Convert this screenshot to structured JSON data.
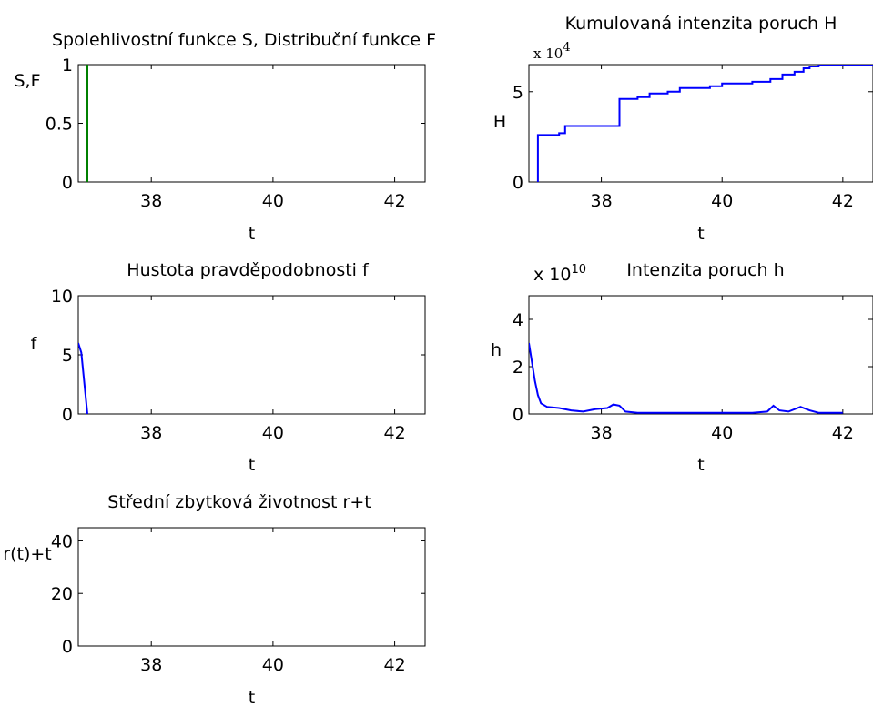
{
  "chart_data": [
    {
      "id": "sf",
      "type": "line",
      "title": "Spolehlivostní funkce S, Distribuční funkce F",
      "xlabel": "t",
      "ylabel": "S,F",
      "xlim": [
        36.8,
        42.5
      ],
      "ylim": [
        0,
        1
      ],
      "xticks": [
        38,
        40,
        42
      ],
      "yticks": [
        0,
        0.5,
        1
      ],
      "ytick_labels": [
        "0",
        "0.5",
        "1"
      ],
      "series": [
        {
          "color": "#008000",
          "points": [
            [
              36.95,
              0
            ],
            [
              36.95,
              1
            ]
          ]
        }
      ]
    },
    {
      "id": "H",
      "type": "line",
      "title": "Kumulovaná intenzita poruch H",
      "xlabel": "t",
      "ylabel": "H",
      "multiplier_base": "x 10",
      "multiplier_exp": "4",
      "xlim": [
        36.8,
        42.5
      ],
      "ylim": [
        0,
        6.5
      ],
      "xticks": [
        38,
        40,
        42
      ],
      "yticks": [
        0,
        5
      ],
      "ytick_labels": [
        "0",
        "5"
      ],
      "series": [
        {
          "color": "#0000ff",
          "step": true,
          "points": [
            [
              36.95,
              0
            ],
            [
              36.95,
              2.6
            ],
            [
              37.3,
              2.6
            ],
            [
              37.3,
              2.7
            ],
            [
              37.4,
              2.7
            ],
            [
              37.4,
              3.1
            ],
            [
              38.3,
              3.1
            ],
            [
              38.3,
              4.6
            ],
            [
              38.6,
              4.6
            ],
            [
              38.6,
              4.7
            ],
            [
              38.8,
              4.7
            ],
            [
              38.8,
              4.9
            ],
            [
              39.1,
              4.9
            ],
            [
              39.1,
              5.0
            ],
            [
              39.3,
              5.0
            ],
            [
              39.3,
              5.2
            ],
            [
              39.8,
              5.2
            ],
            [
              39.8,
              5.3
            ],
            [
              40.0,
              5.3
            ],
            [
              40.0,
              5.45
            ],
            [
              40.5,
              5.45
            ],
            [
              40.5,
              5.55
            ],
            [
              40.8,
              5.55
            ],
            [
              40.8,
              5.7
            ],
            [
              41.0,
              5.7
            ],
            [
              41.0,
              5.95
            ],
            [
              41.2,
              5.95
            ],
            [
              41.2,
              6.1
            ],
            [
              41.35,
              6.1
            ],
            [
              41.35,
              6.3
            ],
            [
              41.45,
              6.3
            ],
            [
              41.45,
              6.4
            ],
            [
              41.6,
              6.4
            ],
            [
              41.6,
              6.5
            ],
            [
              42.5,
              6.5
            ]
          ]
        }
      ]
    },
    {
      "id": "f",
      "type": "line",
      "title": "Hustota pravděpodobnosti f",
      "xlabel": "t",
      "ylabel": "f",
      "xlim": [
        36.8,
        42.5
      ],
      "ylim": [
        0,
        10
      ],
      "xticks": [
        38,
        40,
        42
      ],
      "yticks": [
        0,
        5,
        10
      ],
      "ytick_labels": [
        "0",
        "5",
        "10"
      ],
      "series": [
        {
          "color": "#0000ff",
          "points": [
            [
              36.8,
              6.0
            ],
            [
              36.85,
              5.2
            ],
            [
              36.95,
              0
            ]
          ]
        }
      ]
    },
    {
      "id": "h",
      "type": "line",
      "title": "Intenzita poruch h",
      "xlabel": "t",
      "ylabel": "h",
      "multiplier_base": "x 10",
      "multiplier_exp": "10",
      "xlim": [
        36.8,
        42.5
      ],
      "ylim": [
        0,
        5
      ],
      "xticks": [
        38,
        40,
        42
      ],
      "yticks": [
        0,
        2,
        4
      ],
      "ytick_labels": [
        "0",
        "2",
        "4"
      ],
      "series": [
        {
          "color": "#0000ff",
          "points": [
            [
              36.8,
              3.0
            ],
            [
              36.85,
              2.2
            ],
            [
              36.9,
              1.4
            ],
            [
              36.95,
              0.8
            ],
            [
              37.0,
              0.45
            ],
            [
              37.1,
              0.3
            ],
            [
              37.3,
              0.25
            ],
            [
              37.5,
              0.15
            ],
            [
              37.7,
              0.1
            ],
            [
              37.9,
              0.2
            ],
            [
              38.1,
              0.25
            ],
            [
              38.2,
              0.4
            ],
            [
              38.3,
              0.35
            ],
            [
              38.4,
              0.1
            ],
            [
              38.6,
              0.05
            ],
            [
              39.0,
              0.05
            ],
            [
              39.5,
              0.05
            ],
            [
              40.0,
              0.05
            ],
            [
              40.5,
              0.05
            ],
            [
              40.75,
              0.1
            ],
            [
              40.85,
              0.35
            ],
            [
              40.95,
              0.15
            ],
            [
              41.1,
              0.1
            ],
            [
              41.3,
              0.3
            ],
            [
              41.45,
              0.15
            ],
            [
              41.6,
              0.05
            ],
            [
              41.8,
              0.05
            ],
            [
              42.0,
              0.05
            ]
          ]
        }
      ]
    },
    {
      "id": "r",
      "type": "line",
      "title": "Střední zbytková životnost r+t",
      "xlabel": "t",
      "ylabel": "r(t)+t",
      "xlim": [
        36.8,
        42.5
      ],
      "ylim": [
        0,
        45
      ],
      "xticks": [
        38,
        40,
        42
      ],
      "yticks": [
        0,
        20,
        40
      ],
      "ytick_labels": [
        "0",
        "20",
        "40"
      ],
      "series": []
    }
  ]
}
